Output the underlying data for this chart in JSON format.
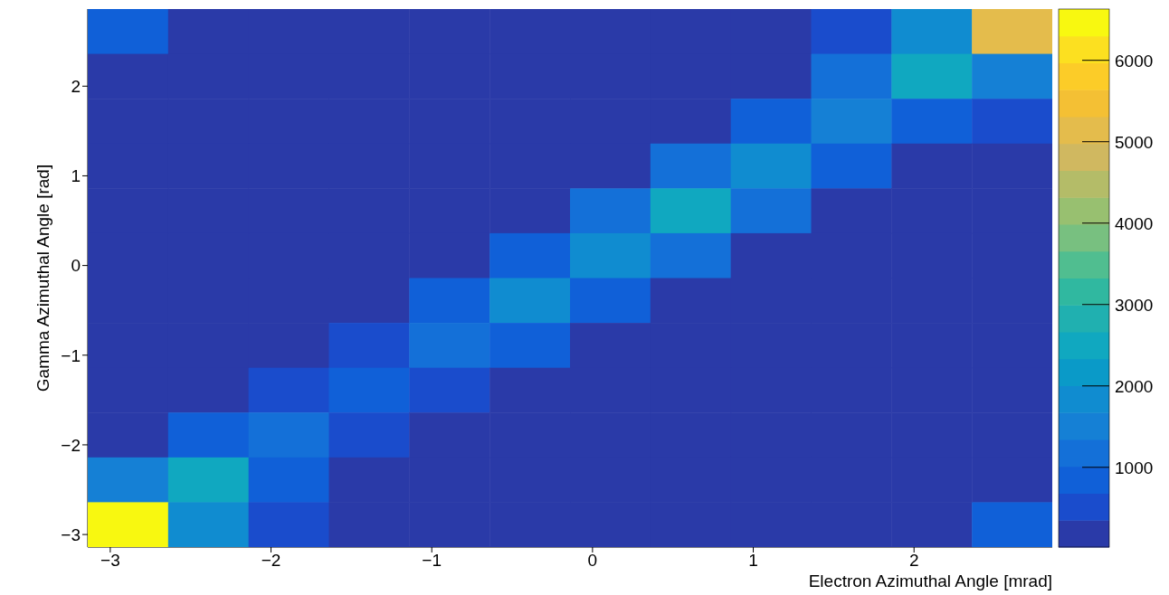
{
  "chart_data": {
    "type": "heatmap",
    "xlabel": "Electron Azimuthal Angle [mrad]",
    "ylabel": "Gamma Azimuthal Angle [rad]",
    "x": [
      -2.89,
      -2.39,
      -1.89,
      -1.39,
      -0.89,
      -0.39,
      0.11,
      0.61,
      1.11,
      1.61,
      2.11,
      2.61
    ],
    "y": [
      2.61,
      2.11,
      1.61,
      1.11,
      0.61,
      0.11,
      -0.39,
      -0.89,
      -1.39,
      -1.89,
      -2.39,
      -2.89
    ],
    "xlim": [
      -3.14,
      2.86
    ],
    "xticks": [
      -3,
      -2,
      -1,
      0,
      1,
      2
    ],
    "ylim": [
      -3.14,
      2.86
    ],
    "yticks": [
      -3,
      -2,
      -1,
      0,
      1,
      2
    ],
    "clim": [
      20,
      6630
    ],
    "cticks": [
      1000,
      2000,
      3000,
      4000,
      5000,
      6000
    ],
    "cells": [
      [
        850,
        100,
        100,
        100,
        100,
        100,
        100,
        100,
        100,
        500,
        1800,
        5100
      ],
      [
        100,
        100,
        100,
        100,
        100,
        100,
        100,
        100,
        100,
        1200,
        2500,
        1500
      ],
      [
        100,
        100,
        100,
        100,
        100,
        100,
        100,
        100,
        850,
        1500,
        850,
        500
      ],
      [
        100,
        100,
        100,
        100,
        100,
        100,
        100,
        1200,
        1800,
        850,
        100,
        100
      ],
      [
        100,
        100,
        100,
        100,
        100,
        100,
        1200,
        2500,
        1200,
        100,
        100,
        100
      ],
      [
        100,
        100,
        100,
        100,
        100,
        850,
        1800,
        1200,
        100,
        100,
        100,
        100
      ],
      [
        100,
        100,
        100,
        100,
        850,
        1800,
        850,
        100,
        100,
        100,
        100,
        100
      ],
      [
        100,
        100,
        100,
        500,
        1300,
        850,
        100,
        100,
        100,
        100,
        100,
        100
      ],
      [
        100,
        100,
        500,
        850,
        500,
        100,
        100,
        100,
        100,
        100,
        100,
        100
      ],
      [
        100,
        850,
        1200,
        500,
        100,
        100,
        100,
        100,
        100,
        100,
        100,
        100
      ],
      [
        1500,
        2500,
        850,
        100,
        100,
        100,
        100,
        100,
        100,
        100,
        100,
        100
      ],
      [
        6500,
        1800,
        500,
        100,
        100,
        100,
        100,
        100,
        100,
        100,
        100,
        850
      ]
    ]
  }
}
